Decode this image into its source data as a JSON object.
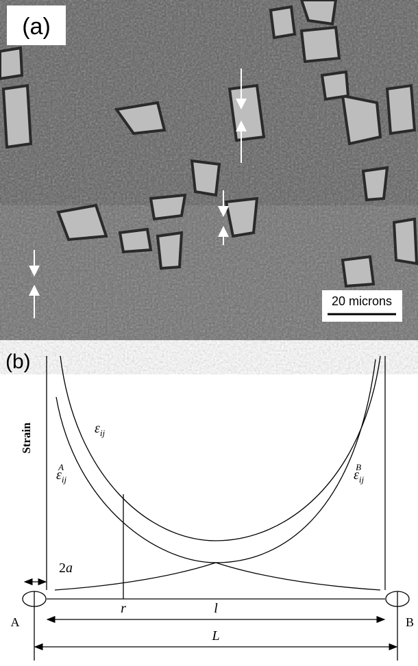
{
  "panel_a": {
    "label": "(a)",
    "scale_bar": "20 microns"
  },
  "panel_b": {
    "label": "(b)",
    "y_axis_label": "Strain",
    "curves": [
      {
        "symbol": "ε",
        "subscript": "ij"
      },
      {
        "symbol": "ε",
        "subscript": "ij",
        "superscript": "A"
      },
      {
        "symbol": "ε",
        "subscript": "ij",
        "superscript": "B"
      }
    ],
    "defect_size": {
      "number": "2",
      "variable": "a"
    },
    "distance_r": "r",
    "distance_l": "l",
    "distance_L": "L",
    "point_a": "A",
    "point_b": "B"
  }
}
